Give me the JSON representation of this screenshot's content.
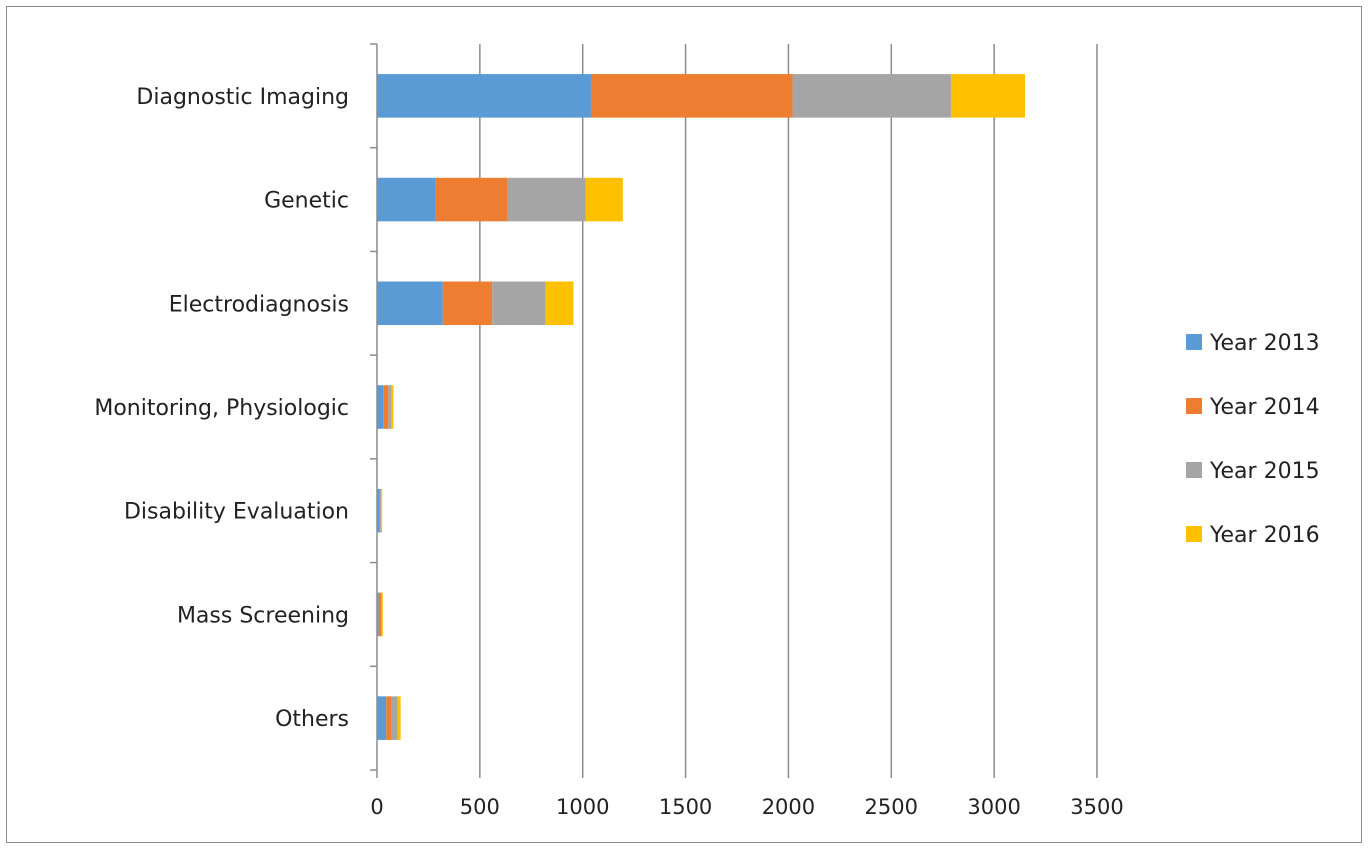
{
  "chart_data": {
    "type": "bar",
    "orientation": "horizontal",
    "stacked": true,
    "categories": [
      "Diagnostic Imaging",
      "Genetic",
      "Electrodiagnosis",
      "Monitoring, Physiologic",
      "Disability Evaluation",
      "Mass Screening",
      "Others"
    ],
    "series": [
      {
        "name": "Year 2013",
        "color": "#5b9bd5",
        "values": [
          1040,
          285,
          320,
          30,
          10,
          8,
          45
        ]
      },
      {
        "name": "Year 2014",
        "color": "#ed7d31",
        "values": [
          980,
          350,
          240,
          25,
          5,
          12,
          25
        ]
      },
      {
        "name": "Year 2015",
        "color": "#a5a5a5",
        "values": [
          770,
          380,
          260,
          15,
          5,
          4,
          30
        ]
      },
      {
        "name": "Year 2016",
        "color": "#ffc000",
        "values": [
          360,
          180,
          135,
          10,
          5,
          4,
          15
        ]
      }
    ],
    "xlim": [
      0,
      3500
    ],
    "x_ticks": [
      "0",
      "500",
      "1000",
      "1500",
      "2000",
      "2500",
      "3000",
      "3500"
    ],
    "grid": true,
    "legend": "right",
    "title": "",
    "xlabel": "",
    "ylabel": ""
  }
}
